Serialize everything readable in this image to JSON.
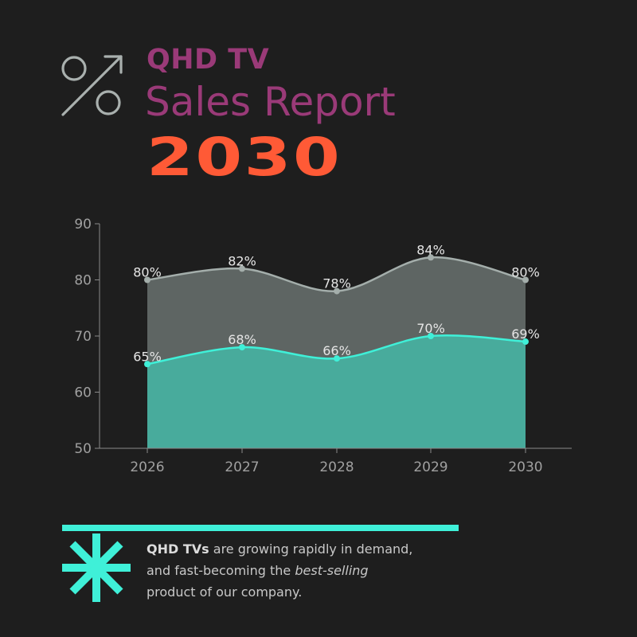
{
  "header": {
    "subtitle": "QHD TV",
    "title": "Sales Report",
    "year": "2030",
    "subtitle_color": "#9a3a78",
    "title_color": "#9a3a78",
    "year_color": "#ff5a36",
    "icon": "percent-growth-icon"
  },
  "chart_data": {
    "type": "area",
    "x": [
      "2026",
      "2027",
      "2028",
      "2029",
      "2030"
    ],
    "ylim": [
      50,
      90
    ],
    "yticks": [
      50,
      60,
      70,
      80,
      90
    ],
    "grid": false,
    "series": [
      {
        "values": [
          80,
          82,
          78,
          84,
          80
        ],
        "labels": [
          "80%",
          "82%",
          "78%",
          "84%",
          "80%"
        ],
        "line_color": "#a4aeab",
        "fill_color": "#5e6563"
      },
      {
        "values": [
          65,
          68,
          66,
          70,
          69
        ],
        "labels": [
          "65%",
          "68%",
          "66%",
          "70%",
          "69%"
        ],
        "line_color": "#3ff0d8",
        "fill_color": "#48ab9c"
      }
    ]
  },
  "footer": {
    "note_bold": "QHD TVs",
    "note_line1": " are growing rapidly in demand,",
    "note_line2_prefix": "and fast-becoming the ",
    "note_italic": "best-selling",
    "note_line3": "product of our company.",
    "accent_color": "#3ff0d8",
    "icon": "asterisk-icon"
  }
}
